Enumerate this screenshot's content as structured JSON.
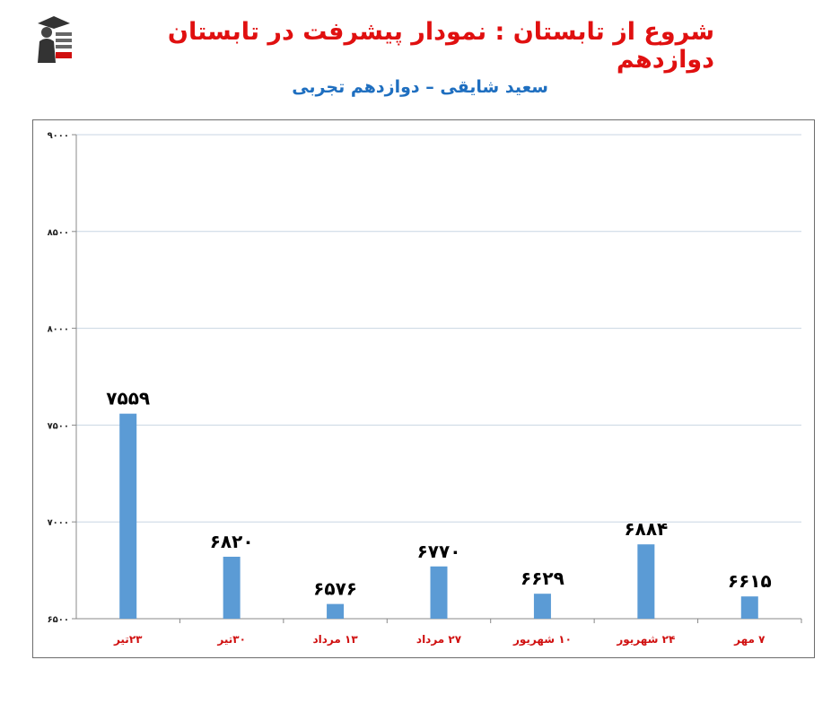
{
  "header": {
    "title": "شروع از تابستان : نمودار پیشرفت در تابستان دوازدهم",
    "subtitle": "سعید شایقی – دوازدهم تجربی",
    "logo_icon": "graduate-logo-icon"
  },
  "chart_data": {
    "type": "bar",
    "categories": [
      "۲۳تیر",
      "۳۰تیر",
      "۱۳ مرداد",
      "۲۷ مرداد",
      "۱۰ شهریور",
      "۲۴ شهریور",
      "۷ مهر"
    ],
    "values": [
      7559,
      6820,
      6576,
      6770,
      6629,
      6884,
      6615
    ],
    "value_labels": [
      "۷۵۵۹",
      "۶۸۲۰",
      "۶۵۷۶",
      "۶۷۷۰",
      "۶۶۲۹",
      "۶۸۸۴",
      "۶۶۱۵"
    ],
    "yticks": [
      6500,
      7000,
      7500,
      8000,
      8500,
      9000
    ],
    "ytick_labels": [
      "۶۵۰۰",
      "۷۰۰۰",
      "۷۵۰۰",
      "۸۰۰۰",
      "۸۵۰۰",
      "۹۰۰۰"
    ],
    "ylim": [
      6500,
      9000
    ],
    "grid": true,
    "bar_color": "#5b9bd5",
    "category_label_color": "#d01010"
  }
}
